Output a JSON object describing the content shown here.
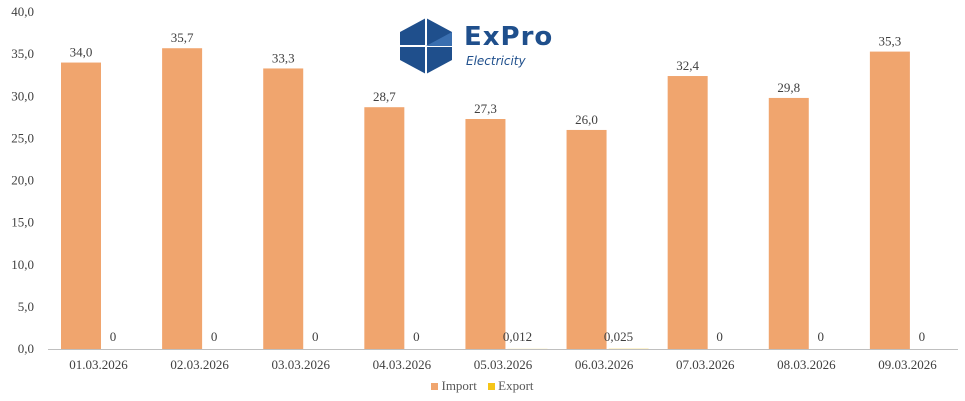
{
  "brand": {
    "name": "ExPro",
    "tagline": "Electricity"
  },
  "colors": {
    "import": "#F0A56E",
    "export": "#F5C518",
    "axis": "#BFBFBF",
    "text": "#404040",
    "logo": "#1F4F8C"
  },
  "chart_data": {
    "type": "bar",
    "title": "",
    "xlabel": "",
    "ylabel": "",
    "ylim": [
      0,
      40
    ],
    "y_ticks": [
      "0,0",
      "5,0",
      "10,0",
      "15,0",
      "20,0",
      "25,0",
      "30,0",
      "35,0",
      "40,0"
    ],
    "grid": false,
    "legend_position": "bottom",
    "categories": [
      "01.03.2026",
      "02.03.2026",
      "03.03.2026",
      "04.03.2026",
      "05.03.2026",
      "06.03.2026",
      "07.03.2026",
      "08.03.2026",
      "09.03.2026"
    ],
    "series": [
      {
        "name": "Import",
        "values": [
          34.0,
          35.7,
          33.3,
          28.7,
          27.3,
          26.0,
          32.4,
          29.8,
          35.3
        ],
        "labels": [
          "34,0",
          "35,7",
          "33,3",
          "28,7",
          "27,3",
          "26,0",
          "32,4",
          "29,8",
          "35,3"
        ]
      },
      {
        "name": "Export",
        "values": [
          0,
          0,
          0,
          0,
          0.012,
          0.025,
          0,
          0,
          0
        ],
        "labels": [
          "0",
          "0",
          "0",
          "0",
          "0,012",
          "0,025",
          "0",
          "0",
          "0"
        ]
      }
    ]
  }
}
